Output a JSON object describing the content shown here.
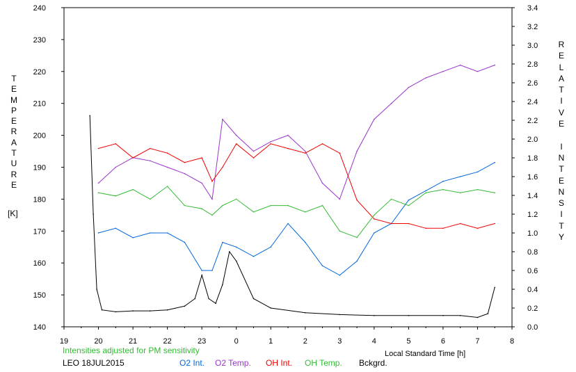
{
  "chart_data": {
    "type": "line",
    "title": "",
    "left_axis": {
      "label": "TEMPERATURE",
      "unit": "[K]",
      "range": [
        140,
        240
      ],
      "ticks": [
        140,
        150,
        160,
        170,
        180,
        190,
        200,
        210,
        220,
        230,
        240
      ]
    },
    "right_axis": {
      "label": "RELATIVE INTENSITY",
      "range": [
        0.0,
        3.4
      ],
      "ticks": [
        "0.0",
        "0.2",
        "0.4",
        "0.6",
        "0.8",
        "1.0",
        "1.2",
        "1.4",
        "1.6",
        "1.8",
        "2.0",
        "2.2",
        "2.4",
        "2.6",
        "2.8",
        "3.0",
        "3.2",
        "3.4"
      ]
    },
    "x_axis": {
      "label": "Local Standard Time [h]",
      "range": [
        19,
        32
      ],
      "tick_labels": [
        "19",
        "20",
        "21",
        "22",
        "23",
        "0",
        "1",
        "2",
        "3",
        "4",
        "5",
        "6",
        "7",
        "8"
      ]
    },
    "grid": false,
    "series": [
      {
        "name": "O2 Int.",
        "axis": "right",
        "color": "#0066dd",
        "x": [
          20.0,
          20.5,
          21.0,
          21.5,
          22.0,
          22.5,
          23.0,
          23.3,
          23.6,
          24.0,
          24.5,
          25.0,
          25.5,
          26.0,
          26.5,
          27.0,
          27.5,
          28.0,
          28.5,
          29.0,
          29.5,
          30.0,
          30.5,
          31.0,
          31.5
        ],
        "y": [
          1.0,
          1.05,
          0.95,
          1.0,
          1.0,
          0.9,
          0.6,
          0.6,
          0.9,
          0.85,
          0.75,
          0.85,
          1.1,
          0.9,
          0.65,
          0.55,
          0.7,
          1.0,
          1.1,
          1.35,
          1.45,
          1.55,
          1.6,
          1.65,
          1.75
        ]
      },
      {
        "name": "O2 Temp.",
        "axis": "left",
        "color": "#9933cc",
        "x": [
          20.0,
          20.5,
          21.0,
          21.5,
          22.0,
          22.5,
          23.0,
          23.3,
          23.6,
          24.0,
          24.5,
          25.0,
          25.5,
          26.0,
          26.5,
          27.0,
          27.5,
          28.0,
          28.5,
          29.0,
          29.5,
          30.0,
          30.5,
          31.0,
          31.5
        ],
        "y": [
          185,
          190,
          193,
          192,
          190,
          188,
          185,
          180,
          205,
          200,
          195,
          198,
          200,
          195,
          185,
          180,
          195,
          205,
          210,
          215,
          218,
          220,
          222,
          220,
          222
        ]
      },
      {
        "name": "OH Int.",
        "axis": "right",
        "color": "#ee0000",
        "x": [
          20.0,
          20.5,
          21.0,
          21.5,
          22.0,
          22.5,
          23.0,
          23.3,
          23.6,
          24.0,
          24.5,
          25.0,
          25.5,
          26.0,
          26.5,
          27.0,
          27.5,
          28.0,
          28.5,
          29.0,
          29.5,
          30.0,
          30.5,
          31.0,
          31.5
        ],
        "y": [
          1.9,
          1.95,
          1.8,
          1.9,
          1.85,
          1.75,
          1.8,
          1.55,
          1.7,
          1.95,
          1.8,
          1.95,
          1.9,
          1.85,
          1.95,
          1.85,
          1.35,
          1.15,
          1.1,
          1.1,
          1.05,
          1.05,
          1.1,
          1.05,
          1.1
        ]
      },
      {
        "name": "OH Temp.",
        "axis": "left",
        "color": "#33bb33",
        "x": [
          20.0,
          20.5,
          21.0,
          21.5,
          22.0,
          22.5,
          23.0,
          23.3,
          23.6,
          24.0,
          24.5,
          25.0,
          25.5,
          26.0,
          26.5,
          27.0,
          27.5,
          28.0,
          28.5,
          29.0,
          29.5,
          30.0,
          30.5,
          31.0,
          31.5
        ],
        "y": [
          182,
          181,
          183,
          180,
          184,
          178,
          177,
          175,
          178,
          180,
          176,
          178,
          178,
          176,
          178,
          170,
          168,
          175,
          180,
          178,
          182,
          183,
          182,
          183,
          182
        ]
      },
      {
        "name": "Bckgrd.",
        "axis": "right",
        "color": "#000000",
        "x": [
          19.75,
          19.85,
          19.95,
          20.1,
          20.5,
          21.0,
          21.5,
          22.0,
          22.5,
          22.8,
          23.0,
          23.2,
          23.4,
          23.6,
          23.8,
          24.0,
          24.5,
          25.0,
          26.0,
          27.0,
          28.0,
          29.0,
          30.0,
          30.5,
          31.0,
          31.3,
          31.5
        ],
        "y": [
          2.25,
          1.2,
          0.4,
          0.18,
          0.16,
          0.17,
          0.17,
          0.18,
          0.22,
          0.3,
          0.55,
          0.3,
          0.25,
          0.45,
          0.8,
          0.7,
          0.3,
          0.2,
          0.15,
          0.13,
          0.12,
          0.12,
          0.12,
          0.12,
          0.1,
          0.14,
          0.42
        ]
      }
    ]
  },
  "footer": {
    "note": "Intensities adjusted for PM sensitivity",
    "station_date": "LEO 18JUL2015",
    "legend": [
      {
        "label": "O2 Int.",
        "color": "#0066dd"
      },
      {
        "label": "O2 Temp.",
        "color": "#9933cc"
      },
      {
        "label": "OH Int.",
        "color": "#ee0000"
      },
      {
        "label": "OH Temp.",
        "color": "#33bb33"
      },
      {
        "label": "Bckgrd.",
        "color": "#000000"
      }
    ]
  }
}
